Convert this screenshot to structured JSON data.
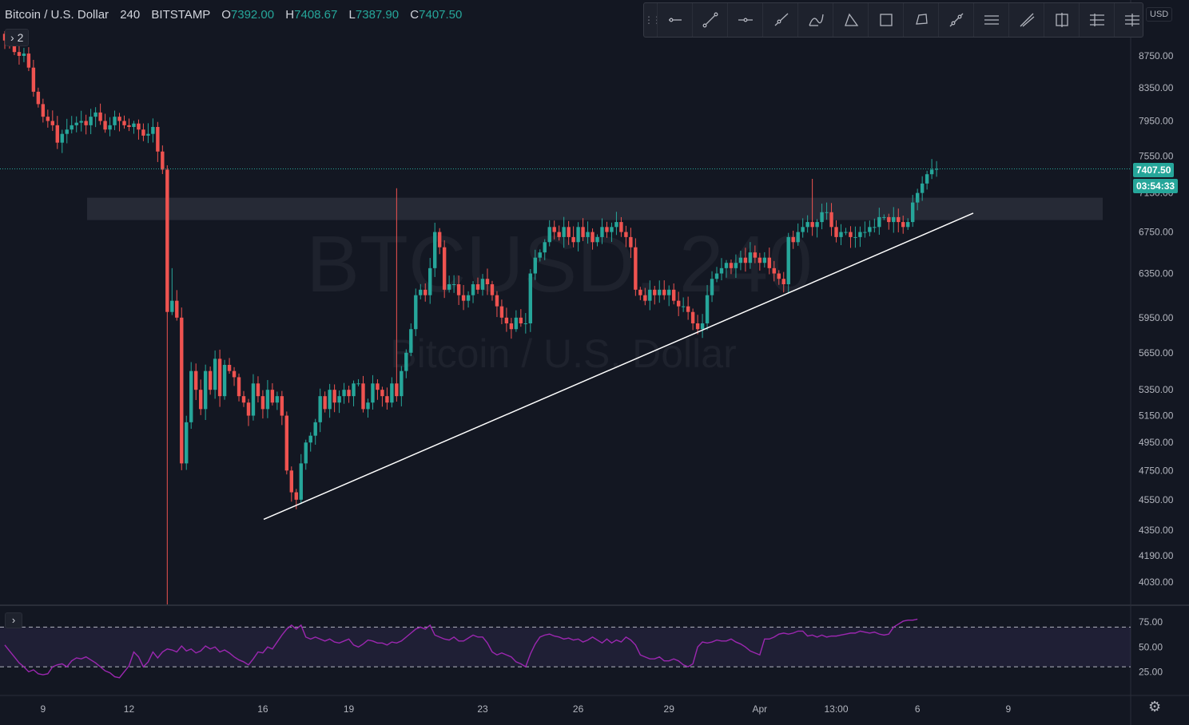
{
  "header": {
    "symbol_title": "Bitcoin / U.S. Dollar",
    "interval": "240",
    "exchange": "BITSTAMP",
    "open_label": "O",
    "open": "7392.00",
    "high_label": "H",
    "high": "7408.67",
    "low_label": "L",
    "low": "7387.90",
    "close_label": "C",
    "close": "7407.50"
  },
  "collapse_button": {
    "label": "2",
    "icon": "chevron-right-icon"
  },
  "currency_label": "USD",
  "toolbar": {
    "tools": [
      "horizontal-ray-icon",
      "trend-line-icon",
      "horizontal-line-icon",
      "ray-icon",
      "curve-icon",
      "triangle-pattern-icon",
      "rectangle-icon",
      "polygon-icon",
      "extended-line-icon",
      "parallel-channel-icon",
      "trend-angle-icon",
      "long-position-icon",
      "fib-retracement-icon",
      "gann-box-icon"
    ]
  },
  "watermark": {
    "line1": "BTCUSD, 240",
    "line2": "Bitcoin / U.S. Dollar"
  },
  "current_price_tag": "7407.50",
  "countdown_tag": "03:54:33",
  "colors": {
    "up": "#26a69a",
    "down": "#ef5350",
    "background": "#131722",
    "rsi": "#9c27b0",
    "trendline": "#ffffff"
  },
  "chart_data": [
    {
      "type": "candlestick",
      "title": "Bitcoin / U.S. Dollar",
      "interval": "240",
      "yscale": "log",
      "ylim": [
        3900,
        9300
      ],
      "y_ticks": [
        8750,
        8350,
        7950,
        7550,
        7150,
        6750,
        6350,
        5950,
        5650,
        5350,
        5150,
        4950,
        4750,
        4550,
        4350,
        4190,
        4030
      ],
      "y_tick_labels": [
        "8750.00",
        "8350.00",
        "7950.00",
        "7550.00",
        "7150.00",
        "6750.00",
        "6350.00",
        "5950.00",
        "5650.00",
        "5350.00",
        "5150.00",
        "4950.00",
        "4750.00",
        "4550.00",
        "4350.00",
        "4190.00",
        "4030.00"
      ],
      "x_tick_labels": [
        "9",
        "12",
        "16",
        "19",
        "23",
        "26",
        "29",
        "Apr",
        "13:00",
        "6",
        "9"
      ],
      "closes": [
        8950,
        8900,
        8800,
        8750,
        8780,
        8600,
        8300,
        8150,
        8000,
        7950,
        7900,
        7700,
        7800,
        7850,
        7900,
        7930,
        7950,
        7900,
        8000,
        8050,
        7950,
        7850,
        7900,
        8000,
        7950,
        7900,
        7880,
        7920,
        7850,
        7780,
        7800,
        7880,
        7600,
        7400,
        6000,
        6100,
        5950,
        4800,
        5100,
        5500,
        5350,
        5200,
        5500,
        5350,
        5600,
        5300,
        5550,
        5500,
        5450,
        5300,
        5250,
        5150,
        5400,
        5300,
        5200,
        5350,
        5250,
        5300,
        5150,
        4750,
        4600,
        4550,
        4800,
        4950,
        5000,
        5100,
        5300,
        5200,
        5350,
        5250,
        5300,
        5350,
        5300,
        5400,
        5400,
        5200,
        5250,
        5400,
        5350,
        5300,
        5250,
        5400,
        5300,
        5500,
        5650,
        5850,
        6150,
        6200,
        6150,
        6400,
        6750,
        6600,
        6200,
        6250,
        6250,
        6150,
        6100,
        6150,
        6250,
        6200,
        6300,
        6250,
        6150,
        6050,
        5950,
        5900,
        5850,
        5950,
        5900,
        5900,
        6350,
        6500,
        6550,
        6650,
        6800,
        6750,
        6700,
        6800,
        6700,
        6650,
        6800,
        6700,
        6750,
        6650,
        6700,
        6800,
        6750,
        6800,
        6850,
        6750,
        6700,
        6600,
        6200,
        6150,
        6100,
        6200,
        6150,
        6200,
        6150,
        6200,
        6100,
        6050,
        6050,
        6000,
        5900,
        5850,
        5900,
        6150,
        6300,
        6350,
        6400,
        6450,
        6400,
        6450,
        6500,
        6450,
        6550,
        6500,
        6450,
        6500,
        6400,
        6350,
        6300,
        6250,
        6700,
        6650,
        6750,
        6800,
        6850,
        6800,
        6850,
        6950,
        6950,
        6800,
        6700,
        6750,
        6750,
        6700,
        6700,
        6750,
        6750,
        6800,
        6800,
        6900,
        6900,
        6850,
        6900,
        6850,
        6800,
        6850,
        7050,
        7150,
        7250,
        7350,
        7400,
        7408
      ]
    },
    {
      "type": "line",
      "title": "RSI",
      "ylim": [
        0,
        100
      ],
      "y_ticks": [
        75,
        50,
        25
      ],
      "y_tick_labels": [
        "75.00",
        "50.00",
        "25.00"
      ],
      "bands": [
        70,
        30
      ],
      "values": [
        52,
        46,
        40,
        34,
        30,
        25,
        27,
        23,
        22,
        23,
        30,
        32,
        33,
        30,
        36,
        39,
        38,
        40,
        37,
        34,
        30,
        26,
        24,
        20,
        19,
        25,
        31,
        45,
        40,
        30,
        35,
        45,
        39,
        45,
        48,
        47,
        45,
        51,
        46,
        48,
        44,
        46,
        51,
        48,
        50,
        45,
        47,
        44,
        40,
        37,
        35,
        32,
        38,
        45,
        44,
        50,
        48,
        55,
        62,
        68,
        72,
        68,
        72,
        60,
        58,
        60,
        58,
        56,
        58,
        55,
        54,
        56,
        58,
        52,
        50,
        53,
        57,
        56,
        54,
        54,
        52,
        55,
        54,
        56,
        60,
        64,
        68,
        70,
        68,
        72,
        62,
        60,
        58,
        57,
        60,
        56,
        56,
        59,
        62,
        60,
        60,
        54,
        45,
        42,
        44,
        42,
        40,
        35,
        33,
        30,
        43,
        53,
        60,
        62,
        63,
        61,
        60,
        58,
        59,
        57,
        58,
        55,
        57,
        60,
        57,
        54,
        58,
        54,
        57,
        55,
        60,
        57,
        52,
        42,
        40,
        38,
        38,
        40,
        36,
        36,
        38,
        36,
        32,
        30,
        33,
        50,
        55,
        54,
        55,
        57,
        56,
        56,
        58,
        55,
        53,
        50,
        46,
        44,
        42,
        58,
        58,
        60,
        63,
        64,
        63,
        64,
        66,
        66,
        61,
        62,
        60,
        62,
        60,
        61,
        61,
        62,
        63,
        64,
        64,
        66,
        65,
        64,
        65,
        63,
        62,
        63,
        70,
        73,
        76,
        77,
        77,
        78
      ]
    }
  ]
}
